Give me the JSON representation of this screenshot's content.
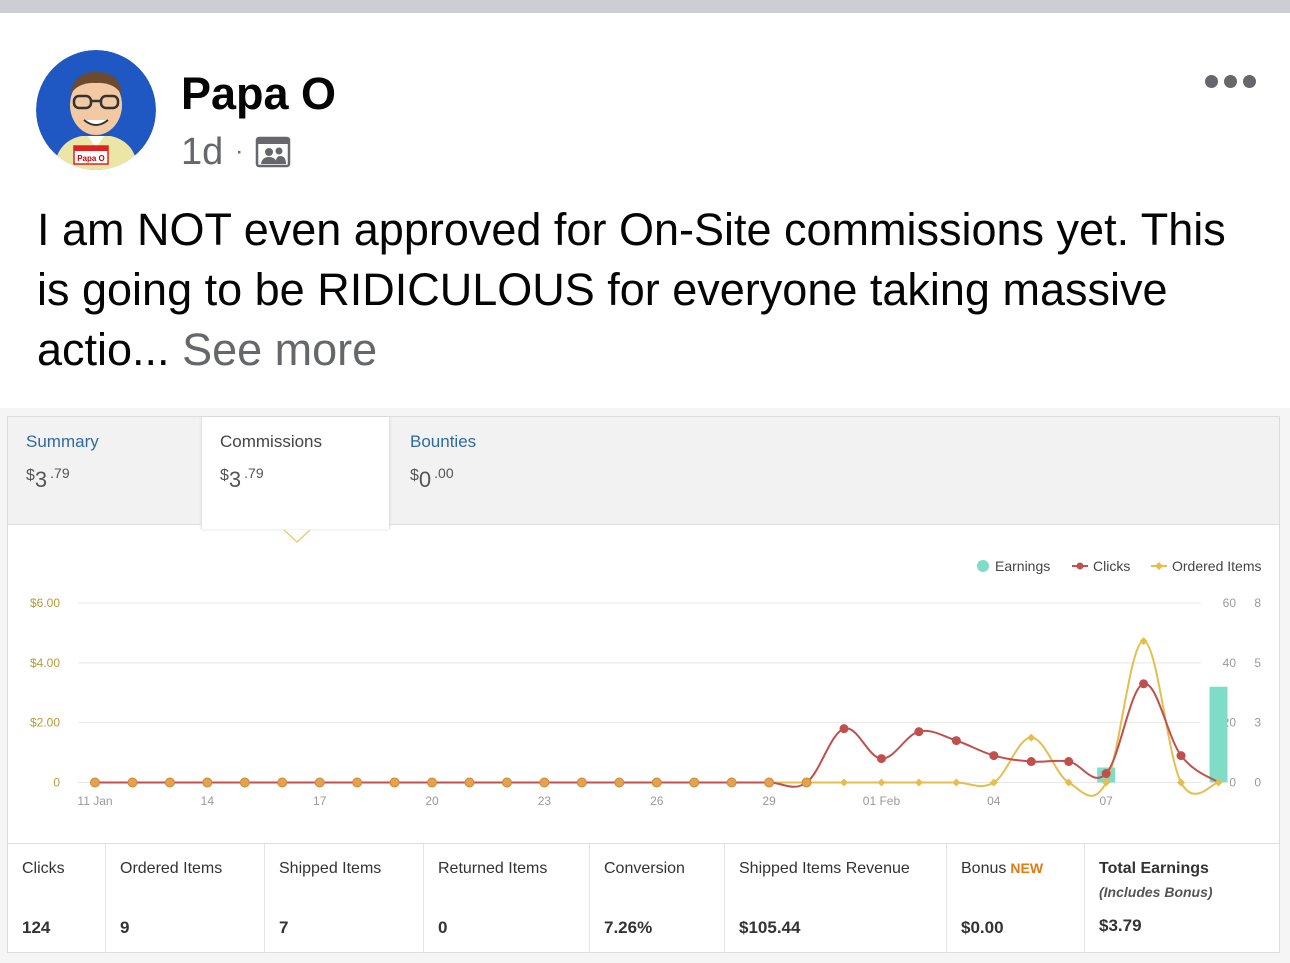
{
  "post": {
    "author": "Papa O",
    "time": "1d",
    "separator": "·",
    "audience_icon": "friends-icon",
    "text": "I am NOT even approved for On-Site commissions yet. This is going to be RIDICULOUS for everyone taking massive actio...",
    "see_more": "See more",
    "avatar": {
      "badge_text": "Papa O",
      "icon": "cartoon-avatar-icon"
    },
    "menu_icon": "more-options-icon"
  },
  "report": {
    "tabs": [
      {
        "label": "Summary",
        "currency": "$",
        "whole": "3",
        "decimal": ".79"
      },
      {
        "label": "Commissions",
        "currency": "$",
        "whole": "3",
        "decimal": ".79"
      },
      {
        "label": "Bounties",
        "currency": "$",
        "whole": "0",
        "decimal": ".00"
      }
    ],
    "selected_tab": "Commissions",
    "stats": [
      {
        "label": "Clicks",
        "value": "124"
      },
      {
        "label": "Ordered Items",
        "value": "9"
      },
      {
        "label": "Shipped Items",
        "value": "7"
      },
      {
        "label": "Returned Items",
        "value": "0"
      },
      {
        "label": "Conversion",
        "value": "7.26%"
      },
      {
        "label": "Shipped Items Revenue",
        "value": "$105.44"
      },
      {
        "label": "Bonus",
        "badge": "NEW",
        "value": "$0.00"
      },
      {
        "label": "Total Earnings",
        "sublabel": "(Includes Bonus)",
        "value": "$3.79"
      }
    ]
  },
  "chart_data": {
    "type": "line",
    "legend": [
      "Earnings",
      "Clicks",
      "Ordered Items"
    ],
    "legend_position": "top-right",
    "colors": {
      "earnings": "#7fdcc7",
      "clicks": "#c0504d",
      "ordered": "#e4be4e",
      "grid": "#e8e8e8",
      "axis_text": "#999999"
    },
    "x_tick_labels": [
      "11 Jan",
      "14",
      "17",
      "20",
      "23",
      "26",
      "29",
      "01 Feb",
      "04",
      "07"
    ],
    "y_left_ticks": [
      "0",
      "$2.00",
      "$4.00",
      "$6.00"
    ],
    "y_right_ticks_clicks": [
      "0",
      "20",
      "40",
      "60"
    ],
    "y_right_ticks_items": [
      "0",
      "3",
      "5",
      "8"
    ],
    "ylim_earnings": [
      0,
      6
    ],
    "ylim_clicks": [
      0,
      60
    ],
    "ylim_items": [
      0,
      8
    ],
    "grid": true,
    "days": 31,
    "series": [
      {
        "name": "Earnings",
        "kind": "bar",
        "values": [
          0,
          0,
          0,
          0,
          0,
          0,
          0,
          0,
          0,
          0,
          0,
          0,
          0,
          0,
          0,
          0,
          0,
          0,
          0,
          0,
          0,
          0,
          0,
          0,
          0,
          0,
          0,
          0.5,
          0,
          0,
          3.2
        ]
      },
      {
        "name": "Clicks",
        "kind": "line",
        "values": [
          0,
          0,
          0,
          0,
          0,
          0,
          0,
          0,
          0,
          0,
          0,
          0,
          0,
          0,
          0,
          0,
          0,
          0,
          0,
          0,
          18,
          8,
          17,
          14,
          9,
          7,
          7,
          3,
          33,
          9,
          0
        ]
      },
      {
        "name": "Ordered Items",
        "kind": "line",
        "values": [
          0,
          0,
          0,
          0,
          0,
          0,
          0,
          0,
          0,
          0,
          0,
          0,
          0,
          0,
          0,
          0,
          0,
          0,
          0,
          0,
          0,
          0,
          0,
          0,
          0,
          2,
          0,
          0,
          6.3,
          0,
          0
        ]
      }
    ]
  }
}
